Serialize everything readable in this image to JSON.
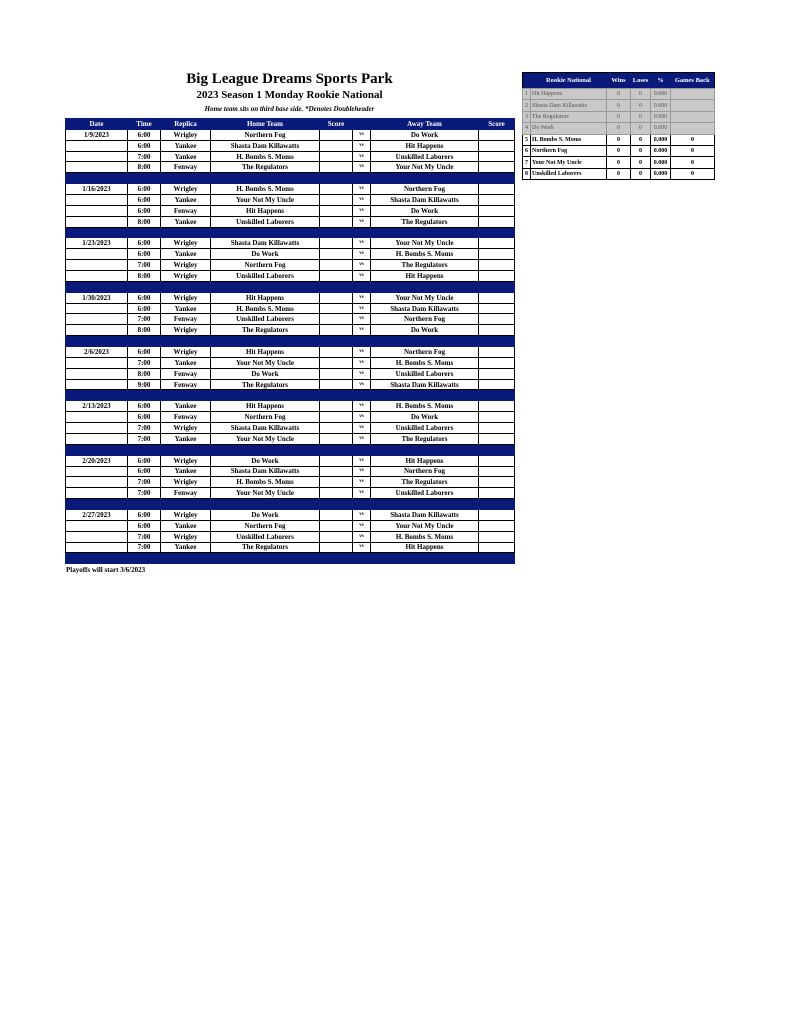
{
  "header": {
    "title": "Big League Dreams Sports Park",
    "subtitle": "2023 Season 1 Monday Rookie National",
    "note": "Home team sits on third base side.  *Denotes Doubleheader"
  },
  "schedule": {
    "columns": [
      "Date",
      "Time",
      "Replica",
      "Home Team",
      "Score",
      "",
      "Away Team",
      "Score"
    ],
    "vs_label": "vs",
    "weeks": [
      {
        "date": "1/9/2023",
        "games": [
          [
            "6:00",
            "Wrigley",
            "Northern Fog",
            "Do Work"
          ],
          [
            "6:00",
            "Yankee",
            "Shasta Dam Killawatts",
            "Hit Happens"
          ],
          [
            "7:00",
            "Yankee",
            "H. Bombs S. Moms",
            "Unskilled Laborers"
          ],
          [
            "8:00",
            "Fenway",
            "The Regulators",
            "Your Not My Uncle"
          ]
        ]
      },
      {
        "date": "1/16/2023",
        "games": [
          [
            "6:00",
            "Wrigley",
            "H. Bombs S. Moms",
            "Northern Fog"
          ],
          [
            "6:00",
            "Yankee",
            "Your Not My Uncle",
            "Shasta Dam Killawatts"
          ],
          [
            "6:00",
            "Fenway",
            "Hit Happens",
            "Do Work"
          ],
          [
            "8:00",
            "Yankee",
            "Unskilled Laborers",
            "The Regulators"
          ]
        ]
      },
      {
        "date": "1/23/2023",
        "games": [
          [
            "6:00",
            "Wrigley",
            "Shasta Dam Killawatts",
            "Your Not My Uncle"
          ],
          [
            "6:00",
            "Yankee",
            "Do Work",
            "H. Bombs S. Moms"
          ],
          [
            "7:00",
            "Wrigley",
            "Northern Fog",
            "The Regulators"
          ],
          [
            "8:00",
            "Wrigley",
            "Unskilled Laborers",
            "Hit Happens"
          ]
        ]
      },
      {
        "date": "1/30/2023",
        "games": [
          [
            "6:00",
            "Wrigley",
            "Hit Happens",
            "Your Not My Uncle"
          ],
          [
            "6:00",
            "Yankee",
            "H. Bombs S. Moms",
            "Shasta Dam Killawatts"
          ],
          [
            "7:00",
            "Fenway",
            "Unskilled Laborers",
            "Northern Fog"
          ],
          [
            "8:00",
            "Wrigley",
            "The Regulators",
            "Do Work"
          ]
        ]
      },
      {
        "date": "2/6/2023",
        "games": [
          [
            "6:00",
            "Wrigley",
            "Hit Happens",
            "Northern Fog"
          ],
          [
            "7:00",
            "Yankee",
            "Your Not My Uncle",
            "H. Bombs S. Moms"
          ],
          [
            "8:00",
            "Fenway",
            "Do Work",
            "Unskilled Laborers"
          ],
          [
            "9:00",
            "Fenway",
            "The Regulators",
            "Shasta Dam Killawatts"
          ]
        ]
      },
      {
        "date": "2/13/2023",
        "games": [
          [
            "6:00",
            "Yankee",
            "Hit Happens",
            "H. Bombs S. Moms"
          ],
          [
            "6:00",
            "Fenway",
            "Northern Fog",
            "Do Work"
          ],
          [
            "7:00",
            "Wrigley",
            "Shasta Dam Killawatts",
            "Unskilled Laborers"
          ],
          [
            "7:00",
            "Yankee",
            "Your Not My Uncle",
            "The Regulators"
          ]
        ]
      },
      {
        "date": "2/20/2023",
        "games": [
          [
            "6:00",
            "Wrigley",
            "Do Work",
            "Hit Happens"
          ],
          [
            "6:00",
            "Yankee",
            "Shasta Dam Killawatts",
            "Northern Fog"
          ],
          [
            "7:00",
            "Wrigley",
            "H. Bombs S. Moms",
            "The Regulators"
          ],
          [
            "7:00",
            "Fenway",
            "Your Not My Uncle",
            "Unskilled Laborers"
          ]
        ]
      },
      {
        "date": "2/27/2023",
        "games": [
          [
            "6:00",
            "Wrigley",
            "Do Work",
            "Shasta Dam Killawatts"
          ],
          [
            "6:00",
            "Yankee",
            "Northern Fog",
            "Your Not My Uncle"
          ],
          [
            "7:00",
            "Wrigley",
            "Unskilled Laborers",
            "H. Bombs S. Moms"
          ],
          [
            "7:00",
            "Yankee",
            "The Regulators",
            "Hit Happens"
          ]
        ]
      }
    ]
  },
  "footer": "Playoffs will start 3/6/2023",
  "standings": {
    "columns": [
      "Rookie National",
      "Wins",
      "Loses",
      "%",
      "Games Back"
    ],
    "rows": [
      {
        "rank": "1",
        "team": "Hit Happens",
        "wins": "0",
        "loses": "0",
        "pct": "0.000",
        "gb": "",
        "gray": true
      },
      {
        "rank": "2",
        "team": "Shasta Dam Killawatts",
        "wins": "0",
        "loses": "0",
        "pct": "0.000",
        "gb": "",
        "gray": true
      },
      {
        "rank": "3",
        "team": "The Regulators",
        "wins": "0",
        "loses": "0",
        "pct": "0.000",
        "gb": "",
        "gray": true
      },
      {
        "rank": "4",
        "team": "Do Work",
        "wins": "0",
        "loses": "0",
        "pct": "0.000",
        "gb": "",
        "gray": true
      },
      {
        "rank": "5",
        "team": "H. Bombs S. Moms",
        "wins": "0",
        "loses": "0",
        "pct": "0.000",
        "gb": "0",
        "gray": false
      },
      {
        "rank": "6",
        "team": "Northern Fog",
        "wins": "0",
        "loses": "0",
        "pct": "0.000",
        "gb": "0",
        "gray": false
      },
      {
        "rank": "7",
        "team": "Your Not My Uncle",
        "wins": "0",
        "loses": "0",
        "pct": "0.000",
        "gb": "0",
        "gray": false
      },
      {
        "rank": "8",
        "team": "Unskilled Laborers",
        "wins": "0",
        "loses": "0",
        "pct": "0.000",
        "gb": "0",
        "gray": false
      }
    ]
  },
  "colors": {
    "header_navy": "#0a1a7a",
    "gray_row": "#c8c8c8"
  }
}
